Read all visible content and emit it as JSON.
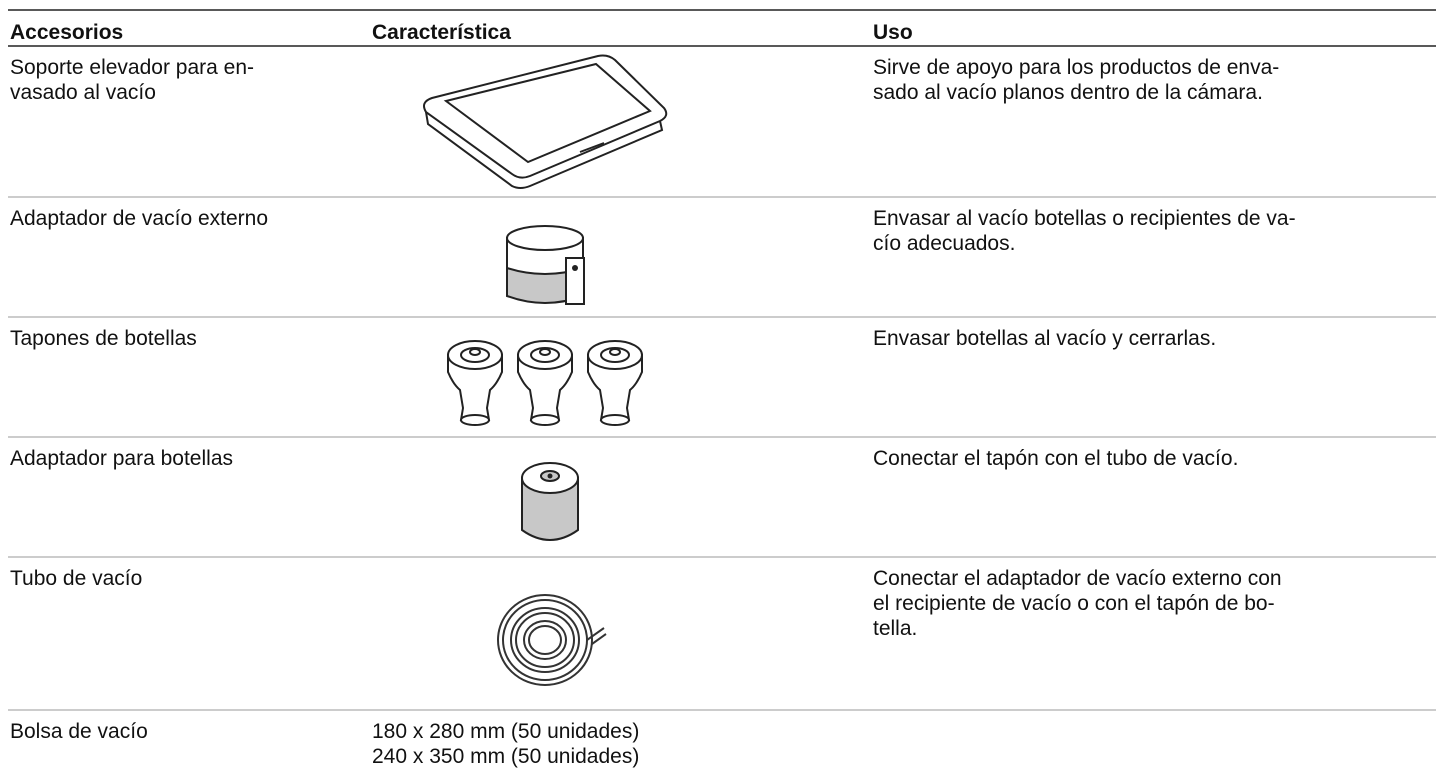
{
  "table": {
    "header": [
      "Accesorios",
      "Característica",
      "Uso"
    ],
    "rows": [
      {
        "accessory": [
          "Soporte elevador para en-",
          "vasado al vacío"
        ],
        "use": [
          "Sirve de apoyo para los productos de enva-",
          "sado al vacío planos dentro de la cámara."
        ]
      },
      {
        "accessory": [
          "Adaptador de vacío externo"
        ],
        "use": [
          "Envasar al vacío botellas o recipientes de va-",
          "cío adecuados."
        ]
      },
      {
        "accessory": [
          "Tapones de botellas"
        ],
        "use": [
          "Envasar botellas al vacío y cerrarlas."
        ]
      },
      {
        "accessory": [
          "Adaptador para botellas"
        ],
        "use": [
          "Conectar el tapón con el tubo de vacío."
        ]
      },
      {
        "accessory": [
          "Tubo de vacío"
        ],
        "use": [
          "Conectar el adaptador de vacío externo con",
          "el recipiente de vacío o con el tapón de bo-",
          "tella."
        ]
      },
      {
        "accessory": [
          "Bolsa de vacío"
        ],
        "feature": [
          "180 x 280 mm (50 unidades)",
          "240 x 350 mm (50 unidades)"
        ]
      }
    ]
  }
}
